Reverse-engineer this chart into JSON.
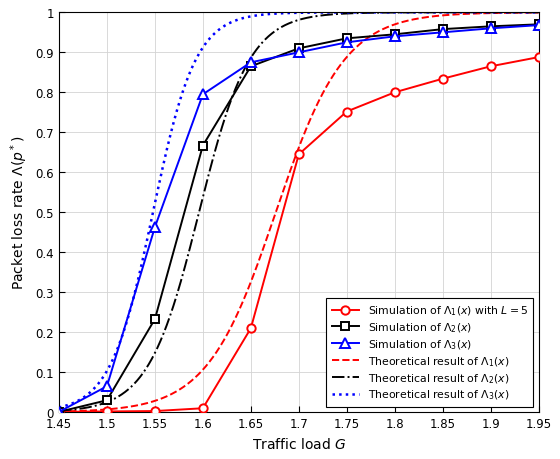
{
  "xlabel": "Traffic load $G$",
  "ylabel": "Packet loss rate $\\Lambda(p^*)$",
  "xlim": [
    1.45,
    1.95
  ],
  "ylim": [
    0,
    1.0
  ],
  "xticks": [
    1.45,
    1.5,
    1.55,
    1.6,
    1.65,
    1.7,
    1.75,
    1.8,
    1.85,
    1.9,
    1.95
  ],
  "yticks": [
    0,
    0.1,
    0.2,
    0.3,
    0.4,
    0.5,
    0.6,
    0.7,
    0.8,
    0.9,
    1.0
  ],
  "xtick_labels": [
    "1.45",
    "1.5",
    "1.55",
    "1.6",
    "1.65",
    "1.7",
    "1.75",
    "1.8",
    "1.85",
    "1.9",
    "1.95"
  ],
  "ytick_labels": [
    "0",
    "0.1",
    "0.2",
    "0.3",
    "0.4",
    "0.5",
    "0.6",
    "0.7",
    "0.8",
    "0.9",
    "1"
  ],
  "sim1_x": [
    1.45,
    1.5,
    1.55,
    1.6,
    1.65,
    1.7,
    1.75,
    1.8,
    1.85,
    1.9,
    1.95
  ],
  "sim1_y": [
    0.001,
    0.002,
    0.003,
    0.01,
    0.21,
    0.645,
    0.752,
    0.8,
    0.834,
    0.865,
    0.888
  ],
  "sim2_x": [
    1.45,
    1.5,
    1.55,
    1.6,
    1.65,
    1.7,
    1.75,
    1.8,
    1.85,
    1.9,
    1.95
  ],
  "sim2_y": [
    0.001,
    0.03,
    0.233,
    0.667,
    0.865,
    0.91,
    0.935,
    0.945,
    0.958,
    0.965,
    0.97
  ],
  "sim3_x": [
    1.45,
    1.5,
    1.55,
    1.6,
    1.65,
    1.7,
    1.75,
    1.8,
    1.85,
    1.9,
    1.95
  ],
  "sim3_y": [
    0.001,
    0.065,
    0.463,
    0.795,
    0.875,
    0.9,
    0.925,
    0.94,
    0.95,
    0.96,
    0.968
  ],
  "th1_mid": 1.676,
  "th1_steep": 28,
  "th2_mid": 1.596,
  "th2_steep": 38,
  "th3_mid": 1.548,
  "th3_steep": 45,
  "color_red": "#FF0000",
  "color_black": "#000000",
  "color_blue": "#0000FF",
  "legend_labels": [
    "Simulation of $\\Lambda_1(x)$ with $L = 5$",
    "Simulation of $\\Lambda_2(x)$",
    "Simulation of $\\Lambda_3(x)$",
    "Theoretical result of $\\Lambda_1(x)$",
    "Theoretical result of $\\Lambda_2(x)$",
    "Theoretical result of $\\Lambda_3(x)$"
  ]
}
